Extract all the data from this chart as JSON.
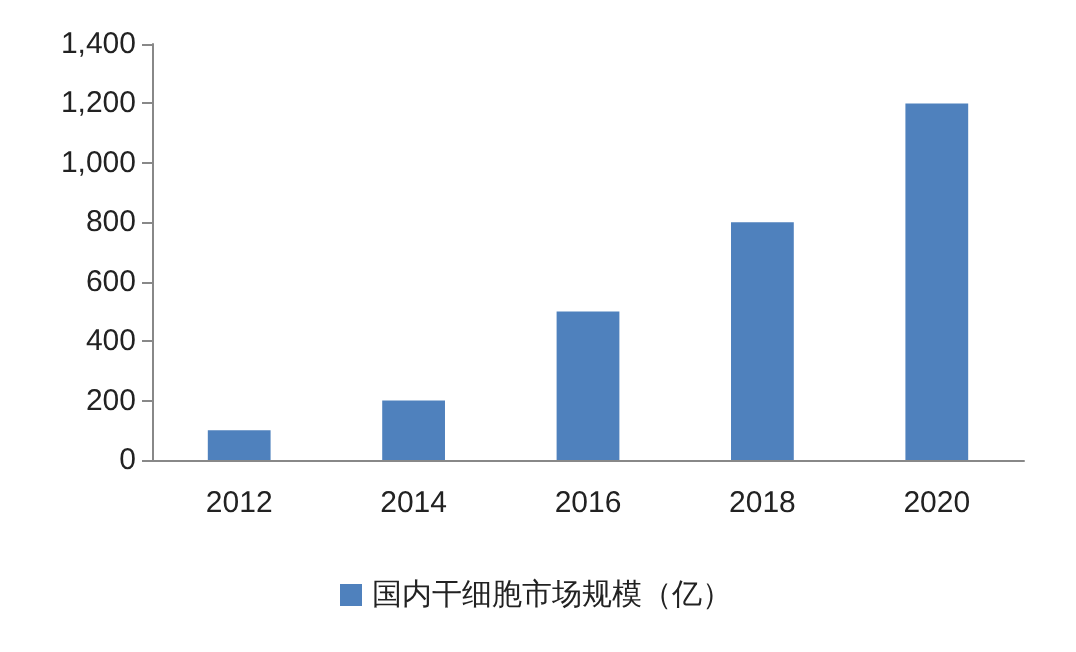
{
  "chart_data": {
    "type": "bar",
    "categories": [
      "2012",
      "2014",
      "2016",
      "2018",
      "2020"
    ],
    "series": [
      {
        "name": "国内干细胞市场规模（亿）",
        "color": "#4f81bd",
        "values": [
          100,
          200,
          500,
          800,
          1200
        ]
      }
    ],
    "ylim": [
      0,
      1400
    ],
    "yticks": [
      0,
      200,
      400,
      600,
      800,
      {
        "value": 1000,
        "label": "1,000"
      },
      {
        "value": 1200,
        "label": "1,200"
      },
      {
        "value": 1400,
        "label": "1,400"
      }
    ],
    "grid": false,
    "legend": "bottom"
  }
}
